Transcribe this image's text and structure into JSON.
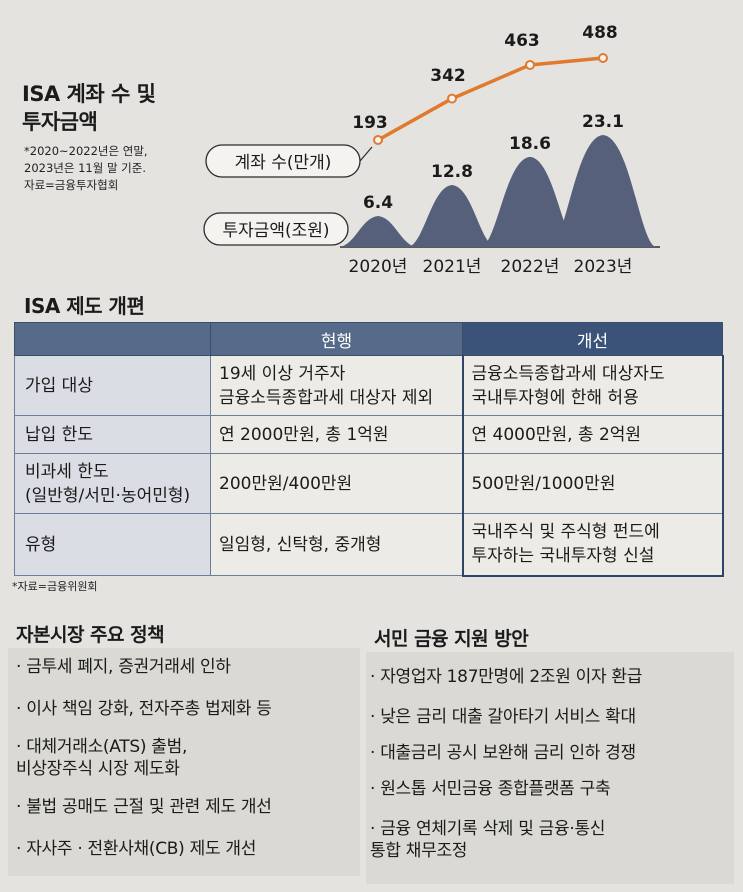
{
  "chart": {
    "title": "ISA 계좌 수 및\n투자금액",
    "note": "*2020~2022년은 연말,\n2023년은 11월 말 기준.\n자료=금융투자협회"
  },
  "chart_data": {
    "type": "line+area",
    "categories": [
      "2020년",
      "2021년",
      "2022년",
      "2023년"
    ],
    "series": [
      {
        "name": "계좌 수(만개)",
        "values": [
          193,
          342,
          463,
          488
        ],
        "color": "#e07a2e",
        "style": "line"
      },
      {
        "name": "투자금액(조원)",
        "values": [
          6.4,
          12.8,
          18.6,
          23.1
        ],
        "color": "#56607a",
        "style": "mountain"
      }
    ],
    "value_labels": {
      "accounts": [
        "193",
        "342",
        "463",
        "488"
      ],
      "investment": [
        "6.4",
        "12.8",
        "18.6",
        "23.1"
      ]
    }
  },
  "reform": {
    "title": "ISA 제도 개편",
    "header_current": "현행",
    "header_improved": "개선",
    "rows": [
      {
        "label": "가입 대상",
        "current": "19세 이상 거주자\n금융소득종합과세 대상자 제외",
        "improved": "금융소득종합과세 대상자도\n국내투자형에 한해 허용"
      },
      {
        "label": "납입 한도",
        "current": "연 2000만원, 총 1억원",
        "improved": "연 4000만원, 총 2억원"
      },
      {
        "label": "비과세 한도\n(일반형/서민·농어민형)",
        "current": "200만원/400만원",
        "improved": "500만원/1000만원"
      },
      {
        "label": "유형",
        "current": "일임형, 신탁형, 중개형",
        "improved": "국내주식 및 주식형 펀드에\n투자하는 국내투자형 신설"
      }
    ],
    "source": "*자료=금융위원회"
  },
  "capital_market": {
    "title": "자본시장 주요 정책",
    "items": [
      "· 금투세 폐지, 증권거래세 인하",
      "· 이사 책임 강화, 전자주총 법제화 등",
      "· 대체거래소(ATS) 출범,\n  비상장주식 시장 제도화",
      "· 불법 공매도 근절 및 관련 제도 개선",
      "· 자사주 · 전환사채(CB) 제도 개선"
    ]
  },
  "support": {
    "title": "서민 금융 지원 방안",
    "items": [
      "· 자영업자 187만명에 2조원 이자 환급",
      "· 낮은 금리 대출 갈아타기 서비스 확대",
      "· 대출금리 공시 보완해 금리 인하 경쟁",
      "· 원스톱 서민금융 종합플랫폼 구축",
      "· 금융 연체기록 삭제 및 금융·통신\n  통합 채무조정"
    ]
  }
}
